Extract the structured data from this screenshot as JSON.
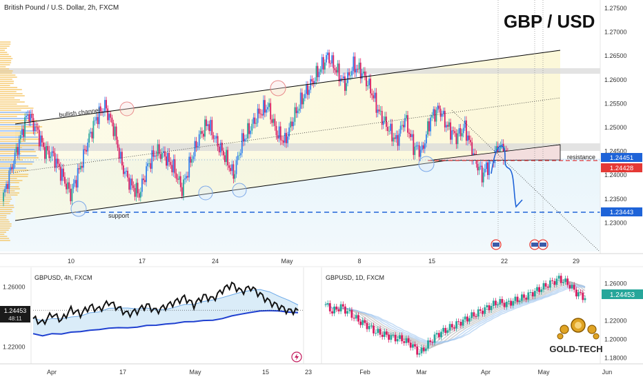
{
  "header": {
    "symbol_title": "British Pound / U.S. Dollar, 2h, FXCM",
    "big_title": "GBP / USD"
  },
  "colors": {
    "up": "#26a69a",
    "up_blue": "#2f80ed",
    "down": "#d81b60",
    "channel": "#000000",
    "support_line": "#1e63d8",
    "resistance_line": "#e53935",
    "zone": "#d9d9d9",
    "profile": "#f5c25a",
    "profile_blue": "#7aa7e8",
    "price_blue": "#1e63d8",
    "price_red": "#e53935"
  },
  "annotations": {
    "bullish_channel": "bullish channel",
    "support": "support",
    "resistance": "resistance"
  },
  "main_chart": {
    "y_ticks": [
      "1.27500",
      "1.27000",
      "1.26500",
      "1.26000",
      "1.25500",
      "1.25000",
      "1.24500",
      "1.24000",
      "1.23500",
      "1.23000"
    ],
    "x_ticks": [
      "10",
      "17",
      "24",
      "May",
      "8",
      "15",
      "22",
      "29"
    ],
    "price_tags": [
      {
        "value": "1.24451",
        "kind": "blue"
      },
      {
        "value": "1.24428",
        "kind": "red"
      },
      {
        "value": "1.23443",
        "kind": "blue"
      }
    ]
  },
  "left_panel": {
    "title": "GBPUSD, 4h, FXCM",
    "y_ticks": [
      "1.26000",
      "1.22000"
    ],
    "current_price": "1.24453",
    "countdown": "48:11",
    "x_ticks": [
      "Apr",
      "17",
      "May",
      "15",
      "23"
    ]
  },
  "right_panel": {
    "title": "GBPUSD, 1D, FXCM",
    "y_ticks": [
      "1.26000",
      "1.22000",
      "1.20000",
      "1.18000"
    ],
    "current_price": "1.24453",
    "x_ticks": [
      "Feb",
      "Mar",
      "Apr",
      "May",
      "Jun"
    ]
  },
  "logo": {
    "text": "GOLD-TECH"
  },
  "chart_data": [
    {
      "type": "candlestick",
      "title": "British Pound / U.S. Dollar, 2h, FXCM",
      "ylim": [
        1.224,
        1.276
      ],
      "x_ticks": [
        "10",
        "17",
        "24",
        "May",
        "8",
        "15",
        "22",
        "29"
      ],
      "series_close": [
        1.2345,
        1.241,
        1.247,
        1.253,
        1.2495,
        1.245,
        1.244,
        1.24,
        1.236,
        1.241,
        1.247,
        1.252,
        1.2545,
        1.25,
        1.242,
        1.238,
        1.236,
        1.242,
        1.245,
        1.244,
        1.2415,
        1.237,
        1.243,
        1.248,
        1.251,
        1.247,
        1.244,
        1.24,
        1.247,
        1.25,
        1.253,
        1.2545,
        1.249,
        1.247,
        1.252,
        1.256,
        1.259,
        1.262,
        1.265,
        1.262,
        1.259,
        1.263,
        1.2615,
        1.258,
        1.253,
        1.25,
        1.247,
        1.252,
        1.246,
        1.245,
        1.252,
        1.254,
        1.25,
        1.248,
        1.25,
        1.244,
        1.24,
        1.243,
        1.246,
        1.244
      ],
      "support": 1.23443,
      "resistance": 1.24451
    },
    {
      "type": "line",
      "title": "GBPUSD, 4h, FXCM",
      "ylim": [
        1.21,
        1.27
      ],
      "series": [
        {
          "name": "GBPUSD, 4h, FXCM",
          "values": [
            1.239,
            1.236,
            1.242,
            1.238,
            1.245,
            1.242,
            1.247,
            1.245,
            1.25,
            1.246,
            1.242,
            1.244,
            1.248,
            1.244,
            1.247,
            1.25,
            1.253,
            1.248,
            1.254,
            1.252,
            1.258,
            1.262,
            1.257,
            1.26,
            1.255,
            1.25,
            1.247,
            1.244,
            1.2445
          ]
        }
      ]
    },
    {
      "type": "candlestick",
      "title": "GBPUSD, 1D, FXCM",
      "ylim": [
        1.176,
        1.272
      ],
      "x_ticks": [
        "Feb",
        "Mar",
        "Apr",
        "May",
        "Jun"
      ],
      "series_close": [
        1.24,
        1.23,
        1.235,
        1.228,
        1.22,
        1.215,
        1.208,
        1.205,
        1.202,
        1.2,
        1.195,
        1.185,
        1.195,
        1.205,
        1.21,
        1.215,
        1.22,
        1.225,
        1.23,
        1.235,
        1.24,
        1.238,
        1.242,
        1.245,
        1.25,
        1.255,
        1.26,
        1.265,
        1.26,
        1.25,
        1.2445
      ]
    }
  ]
}
